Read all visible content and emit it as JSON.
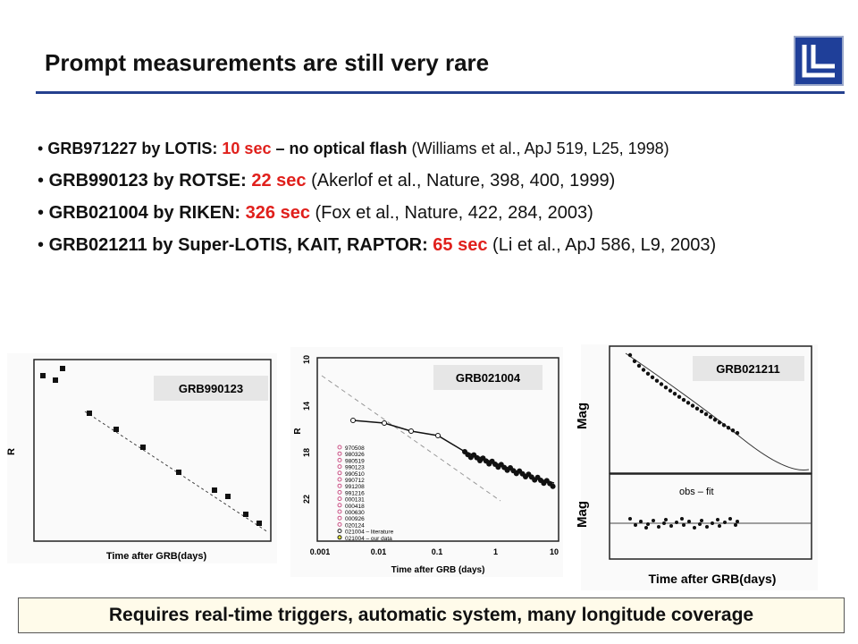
{
  "header": {
    "title": "Prompt measurements are still very rare"
  },
  "bullets": [
    {
      "label": "GRB971227 by LOTIS:",
      "time": "10 sec",
      "note": "– no optical flash",
      "ref": "(Williams et al., ApJ 519, L25, 1998)"
    },
    {
      "label": "GRB990123 by ROTSE:",
      "time": "22 sec",
      "ref": "(Akerlof et al., Nature, 398, 400, 1999)"
    },
    {
      "label": "GRB021004 by RIKEN:",
      "time": "326 sec",
      "ref": "(Fox et al., Nature, 422, 284, 2003)"
    },
    {
      "label": "GRB021211 by Super-LOTIS, KAIT, RAPTOR:",
      "time": "65 sec",
      "ref": "(Li et al., ApJ 586, L9, 2003)"
    }
  ],
  "plots": [
    {
      "tag": "GRB990123",
      "ylabel": "R",
      "xlabel": "Time after GRB(days)"
    },
    {
      "tag": "GRB021004",
      "ylabel": "R",
      "xlabel": "Time after GRB (days)",
      "yticks": [
        "10",
        "14",
        "18",
        "22"
      ],
      "xticks": [
        "0.001",
        "0.01",
        "0.1",
        "1",
        "10"
      ],
      "legend": [
        "970508",
        "980326",
        "980519",
        "990123",
        "990510",
        "990712",
        "991208",
        "991216",
        "000131",
        "000418",
        "000630",
        "000926",
        "020124",
        "021004 – literature",
        "021004 – our data"
      ]
    },
    {
      "tag": "GRB021211",
      "ylabel": "Mag",
      "ylabel2": "Mag",
      "xlabel": "Time after GRB(days)",
      "residual_label": "obs – fit"
    }
  ],
  "footer": "Requires real-time triggers, automatic system, many longitude coverage"
}
